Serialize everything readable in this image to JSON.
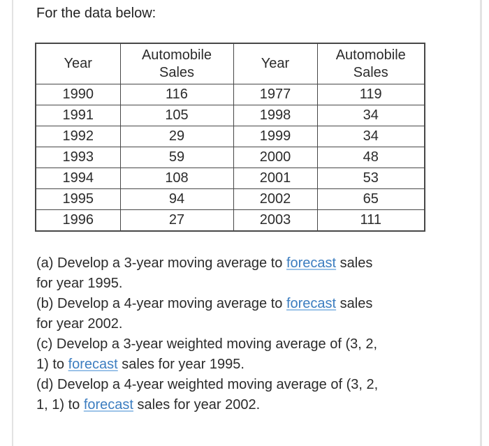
{
  "title": "For the data below:",
  "table": {
    "headers": [
      "Year",
      "Automobile Sales",
      "Year",
      "Automobile Sales"
    ],
    "rows": [
      [
        "1990",
        "116",
        "1977",
        "119"
      ],
      [
        "1991",
        "105",
        "1998",
        "34"
      ],
      [
        "1992",
        "29",
        "1999",
        "34"
      ],
      [
        "1993",
        "59",
        "2000",
        "48"
      ],
      [
        "1994",
        "108",
        "2001",
        "53"
      ],
      [
        "1995",
        "94",
        "2002",
        "65"
      ],
      [
        "1996",
        "27",
        "2003",
        "111"
      ]
    ]
  },
  "questions": [
    {
      "id": "a",
      "segments": [
        {
          "t": "(a) Develop a 3-year moving average to "
        },
        {
          "t": "forecast",
          "link": true
        },
        {
          "t": " sales"
        },
        {
          "br": true
        },
        {
          "t": "for year 1995."
        }
      ]
    },
    {
      "id": "b",
      "segments": [
        {
          "t": "(b) Develop a 4-year moving average to "
        },
        {
          "t": "forecast",
          "link": true
        },
        {
          "t": " sales"
        },
        {
          "br": true
        },
        {
          "t": "for year 2002."
        }
      ]
    },
    {
      "id": "c",
      "segments": [
        {
          "t": "(c) Develop a 3-year weighted moving average of (3, 2,"
        },
        {
          "br": true
        },
        {
          "t": "1) to "
        },
        {
          "t": "forecast",
          "link": true
        },
        {
          "t": " sales for year 1995."
        }
      ]
    },
    {
      "id": "d",
      "segments": [
        {
          "t": "(d) Develop a 4-year weighted moving average of (3, 2,"
        },
        {
          "br": true
        },
        {
          "t": "1, 1) to "
        },
        {
          "t": "forecast",
          "link": true
        },
        {
          "t": " sales for year 2002."
        }
      ]
    }
  ],
  "colors": {
    "link": "#3c7dc0",
    "link_underline": "#9cc3e8",
    "text": "#2b2b2b",
    "table_border": "#474747",
    "page_edge_line": "#e3e3e3",
    "background": "#ffffff"
  }
}
